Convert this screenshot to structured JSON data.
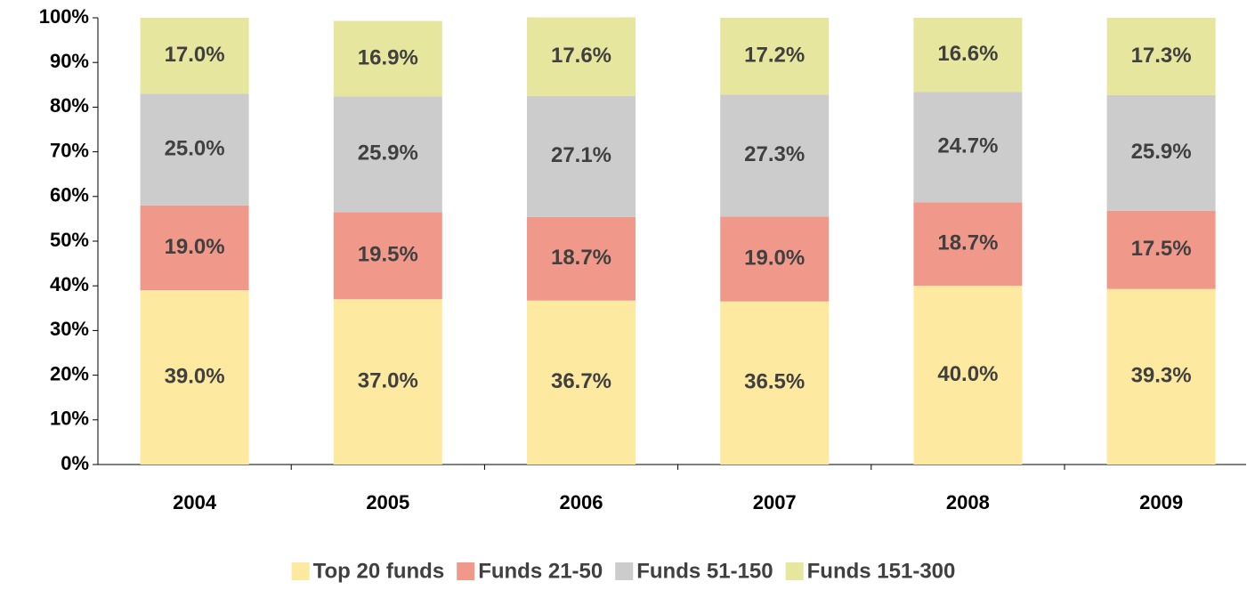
{
  "chart_data": {
    "type": "bar",
    "stacked": true,
    "categories": [
      "2004",
      "2005",
      "2006",
      "2007",
      "2008",
      "2009"
    ],
    "series": [
      {
        "name": "Top 20 funds",
        "color": "#fde9a0",
        "values": [
          39.0,
          37.0,
          36.7,
          36.5,
          40.0,
          39.3
        ],
        "value_labels": [
          "39.0%",
          "37.0%",
          "36.7%",
          "36.5%",
          "40.0%",
          "39.3%"
        ]
      },
      {
        "name": "Funds 21-50",
        "color": "#f0998a",
        "values": [
          19.0,
          19.5,
          18.7,
          19.0,
          18.7,
          17.5
        ],
        "value_labels": [
          "19.0%",
          "19.5%",
          "18.7%",
          "19.0%",
          "18.7%",
          "17.5%"
        ]
      },
      {
        "name": "Funds 51-150",
        "color": "#cccccc",
        "values": [
          25.0,
          25.9,
          27.1,
          27.3,
          24.7,
          25.9
        ],
        "value_labels": [
          "25.0%",
          "25.9%",
          "27.1%",
          "27.3%",
          "24.7%",
          "25.9%"
        ]
      },
      {
        "name": "Funds 151-300",
        "color": "#e6e69e",
        "values": [
          17.0,
          16.9,
          17.6,
          17.2,
          16.6,
          17.3
        ],
        "value_labels": [
          "17.0%",
          "16.9%",
          "17.6%",
          "17.2%",
          "16.6%",
          "17.3%"
        ]
      }
    ],
    "ylim": [
      0,
      100
    ],
    "yticks": [
      {
        "value": 0,
        "label": "0%"
      },
      {
        "value": 10,
        "label": "10%"
      },
      {
        "value": 20,
        "label": "20%"
      },
      {
        "value": 30,
        "label": "30%"
      },
      {
        "value": 40,
        "label": "40%"
      },
      {
        "value": 50,
        "label": "50%"
      },
      {
        "value": 60,
        "label": "60%"
      },
      {
        "value": 70,
        "label": "70%"
      },
      {
        "value": 80,
        "label": "80%"
      },
      {
        "value": 90,
        "label": "90%"
      },
      {
        "value": 100,
        "label": "100%"
      }
    ],
    "grid": false,
    "legend": "bottom"
  }
}
